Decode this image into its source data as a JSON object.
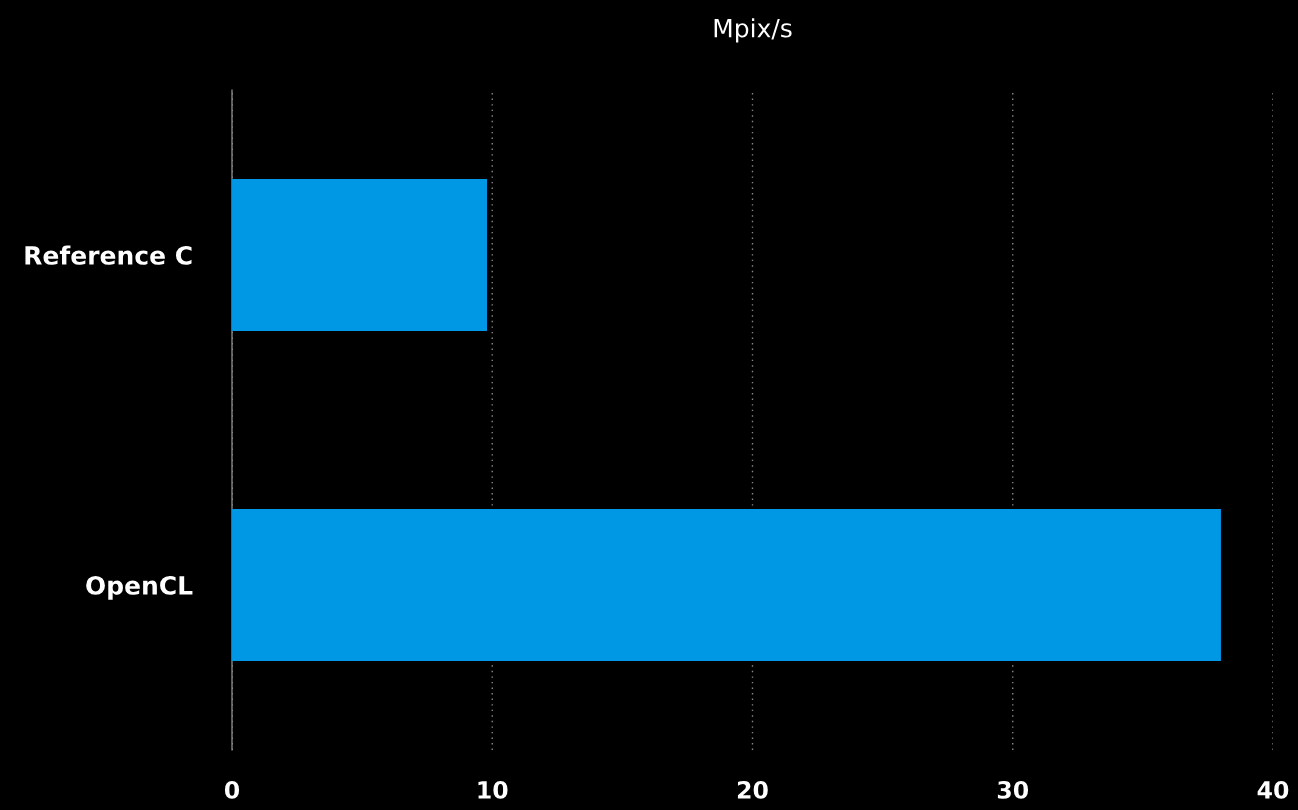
{
  "chart_data": {
    "type": "bar",
    "orientation": "horizontal",
    "xlabel": "Mpix/s",
    "categories": [
      "Reference C",
      "OpenCL"
    ],
    "values": [
      9.8,
      38.0
    ],
    "color": "#0098e4",
    "xlim": [
      0,
      40
    ],
    "xticks": [
      0,
      10,
      20,
      30,
      40
    ],
    "grid": "x"
  }
}
